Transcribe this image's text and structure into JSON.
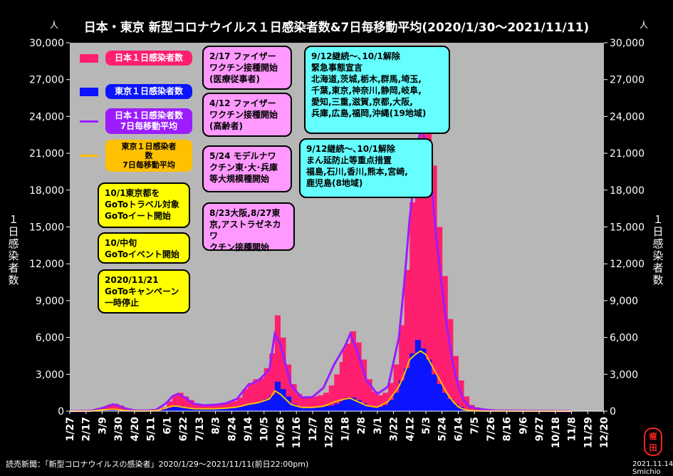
{
  "chart_data": {
    "type": "bar",
    "title": "日本・東京 新型コロナウイルス１日感染者数&7日毎移動平均(2020/1/30～2021/11/11)",
    "y_unit_left": "人",
    "y_unit_right": "人",
    "ylabel_left": "１日感染者数",
    "ylabel_right": "１日感染者数",
    "ylim": [
      0,
      30000
    ],
    "y_ticks": [
      "0",
      "3,000",
      "6,000",
      "9,000",
      "12,000",
      "15,000",
      "18,000",
      "21,000",
      "24,000",
      "27,000",
      "30,000"
    ],
    "x_ticks": [
      "1/27",
      "2/17",
      "3/9",
      "3/30",
      "4/20",
      "5/11",
      "6/1",
      "6/22",
      "7/13",
      "8/3",
      "8/24",
      "9/14",
      "10/5",
      "10/26",
      "11/16",
      "12/7",
      "12/28",
      "1/18",
      "2/8",
      "3/1",
      "3/22",
      "4/12",
      "5/3",
      "5/24",
      "6/14",
      "7/5",
      "7/26",
      "8/16",
      "9/6",
      "9/27",
      "10/18",
      "11/8",
      "11/29",
      "12/20"
    ],
    "grid": false,
    "series": [
      {
        "name": "日本１日感染者数",
        "kind": "bar",
        "color": "#ff1f6f",
        "x": [
          0,
          7,
          14,
          21,
          28,
          35,
          42,
          49,
          56,
          63,
          70,
          77,
          84,
          91,
          98,
          105,
          112,
          119,
          126,
          133,
          140,
          147,
          154,
          161,
          168,
          175,
          182,
          189,
          196,
          203,
          210,
          217,
          224,
          231,
          238,
          245,
          252,
          259,
          266,
          273,
          280,
          287,
          294,
          301,
          308,
          315,
          322,
          329,
          336,
          343,
          350,
          354,
          357,
          364,
          371,
          378,
          385,
          392,
          399,
          406,
          413,
          420,
          427,
          434,
          441,
          448,
          455,
          462,
          469,
          476,
          483,
          490,
          497,
          504,
          511,
          518,
          525,
          532,
          539,
          546,
          553,
          560,
          567,
          574,
          581,
          588,
          595,
          602,
          609,
          616,
          623,
          630,
          637,
          644,
          651
        ],
        "values": [
          0,
          5,
          15,
          30,
          50,
          100,
          300,
          550,
          600,
          450,
          250,
          120,
          60,
          40,
          35,
          50,
          100,
          300,
          800,
          1300,
          1500,
          1200,
          900,
          600,
          500,
          500,
          500,
          550,
          600,
          700,
          800,
          1100,
          1800,
          2300,
          2600,
          2700,
          3500,
          4700,
          7800,
          6000,
          3800,
          2200,
          1400,
          1200,
          1100,
          1200,
          1300,
          1500,
          2100,
          3000,
          4000,
          5000,
          5500,
          6500,
          5600,
          4200,
          2600,
          1600,
          1300,
          1500,
          2300,
          3800,
          7000,
          11500,
          17000,
          21000,
          25800,
          24000,
          20000,
          15000,
          11000,
          7500,
          4500,
          2500,
          1200,
          500,
          300,
          200,
          150,
          100,
          50,
          20,
          0,
          0,
          0,
          0,
          0,
          0,
          0,
          0,
          0,
          0,
          0,
          0,
          0
        ]
      },
      {
        "name": "東京１日感染者数",
        "kind": "bar",
        "color": "#0a14ff",
        "x": [
          0,
          7,
          14,
          21,
          28,
          35,
          42,
          49,
          56,
          63,
          70,
          77,
          84,
          91,
          98,
          105,
          112,
          119,
          126,
          133,
          140,
          147,
          154,
          161,
          168,
          175,
          182,
          189,
          196,
          203,
          210,
          217,
          224,
          231,
          238,
          245,
          252,
          259,
          266,
          273,
          280,
          287,
          294,
          301,
          308,
          315,
          322,
          329,
          336,
          343,
          350,
          354,
          357,
          364,
          371,
          378,
          385,
          392,
          399,
          406,
          413,
          420,
          427,
          434,
          441,
          448,
          455,
          462,
          469,
          476,
          483,
          490,
          497,
          504,
          511,
          518,
          525,
          532,
          539,
          546,
          553,
          560,
          567,
          574,
          581,
          588,
          595,
          602,
          609,
          616,
          623,
          630,
          637,
          644,
          651
        ],
        "values": [
          0,
          2,
          5,
          10,
          20,
          40,
          120,
          190,
          160,
          100,
          40,
          20,
          15,
          10,
          10,
          20,
          50,
          150,
          300,
          450,
          420,
          350,
          250,
          200,
          200,
          200,
          200,
          200,
          250,
          250,
          280,
          350,
          500,
          600,
          700,
          800,
          1000,
          1300,
          2400,
          1800,
          1200,
          600,
          400,
          350,
          300,
          300,
          350,
          400,
          450,
          600,
          800,
          1000,
          1100,
          1100,
          900,
          650,
          450,
          300,
          350,
          500,
          900,
          1500,
          2500,
          3500,
          4700,
          5800,
          5100,
          4200,
          3000,
          2200,
          1500,
          1000,
          600,
          350,
          150,
          70,
          40,
          30,
          25,
          20,
          10,
          5,
          0,
          0,
          0,
          0,
          0,
          0,
          0,
          0,
          0,
          0,
          0,
          0,
          0
        ]
      },
      {
        "name": "日本１日感染者数\n7日毎移動平均",
        "kind": "line",
        "color": "#9b1cff",
        "x": [
          0,
          14,
          28,
          42,
          56,
          63,
          70,
          84,
          98,
          112,
          126,
          133,
          140,
          147,
          161,
          175,
          189,
          203,
          217,
          231,
          245,
          259,
          266,
          273,
          287,
          301,
          315,
          329,
          343,
          357,
          364,
          371,
          385,
          399,
          413,
          427,
          434,
          441,
          448,
          455,
          462,
          469,
          476,
          483,
          490,
          497,
          504,
          511,
          518,
          525,
          539,
          553,
          651
        ],
        "values": [
          0,
          10,
          40,
          250,
          550,
          450,
          250,
          60,
          40,
          100,
          700,
          1200,
          1400,
          1200,
          600,
          480,
          520,
          650,
          1000,
          2100,
          2500,
          3400,
          6300,
          5500,
          2100,
          1100,
          1150,
          1900,
          3800,
          5300,
          6300,
          5200,
          2500,
          1400,
          2000,
          6000,
          10500,
          15700,
          19500,
          23100,
          22000,
          18500,
          13800,
          10000,
          6600,
          3800,
          2000,
          900,
          400,
          250,
          120,
          50,
          0
        ]
      },
      {
        "name": "東京１日感染者数\n7日毎移動平均",
        "kind": "line",
        "color": "#ffc000",
        "x": [
          0,
          14,
          28,
          42,
          56,
          63,
          70,
          84,
          98,
          112,
          126,
          133,
          140,
          147,
          161,
          175,
          189,
          203,
          217,
          231,
          245,
          259,
          266,
          273,
          287,
          301,
          315,
          329,
          343,
          357,
          364,
          371,
          385,
          399,
          413,
          427,
          434,
          441,
          448,
          455,
          462,
          469,
          476,
          483,
          490,
          497,
          504,
          511,
          518,
          525,
          539,
          553,
          651
        ],
        "values": [
          0,
          3,
          15,
          100,
          160,
          120,
          50,
          15,
          10,
          40,
          280,
          420,
          400,
          320,
          200,
          190,
          200,
          250,
          330,
          550,
          700,
          1000,
          1650,
          1400,
          550,
          300,
          300,
          400,
          750,
          1000,
          1050,
          850,
          450,
          320,
          800,
          2000,
          3000,
          4200,
          4600,
          4900,
          4600,
          3800,
          3000,
          2200,
          1400,
          800,
          350,
          150,
          60,
          30,
          20,
          10,
          0
        ]
      }
    ]
  },
  "legend": [
    {
      "label": "日本１日感染者数",
      "swatch_color": "#ff1f6f",
      "box_bg": "#ff1f6f",
      "box_fg": "#ffffff"
    },
    {
      "label": "東京１日感染者数",
      "swatch_color": "#0a14ff",
      "box_bg": "#0a14ff",
      "box_fg": "#ffffff"
    },
    {
      "label": "日本１日感染者数\n7日毎移動平均",
      "swatch_color": "#9b1cff",
      "box_bg": "#9b1cff",
      "box_fg": "#ffffff"
    },
    {
      "label": "東京１日感染者\n数\n7日毎移動平均",
      "swatch_color": "#ffc000",
      "box_bg": "#ffc000",
      "box_fg": "#000000"
    }
  ],
  "notes": {
    "yellow": [
      "10/1東京都を\nGoToトラベル対象\nGoToイート開始",
      "10/中旬\nGoToイベント開始",
      "2020/11/21\nGoToキャンペーン\n一時停止"
    ],
    "pink": [
      "2/17 ファイザー\nワクチン接種開始\n(医療従事者)",
      "4/12 ファイザー\nワクチン接種開始\n(高齢者)",
      "5/24 モデルナワ\nクチン東･大･兵庫\n等大規模種開始",
      "8/23大阪,8/27東\n京,アストラゼネカワ\nクチン接種開始"
    ],
    "cyan": [
      "9/12継続～､10/1解除\n緊急事態宣言\n北海道,茨城,栃木,群馬,埼玉,\n千葉,東京,神奈川,静岡,岐阜,\n愛知,三重,滋賀,京都,大阪,\n兵庫,広島,福岡,沖縄(19地域)",
      "9/12継続～､10/1解除\nまん延防止等重点措置\n福島,石川,香川,熊本,宮崎,\n鹿児島(8地域)"
    ]
  },
  "footer": {
    "source": "読売新聞：「新型コロナウイルスの感染者」2020/1/29～2021/11/11(前日22:00pm)",
    "author": "2021.11.14 Smichio",
    "seal": "瘦\n田"
  }
}
